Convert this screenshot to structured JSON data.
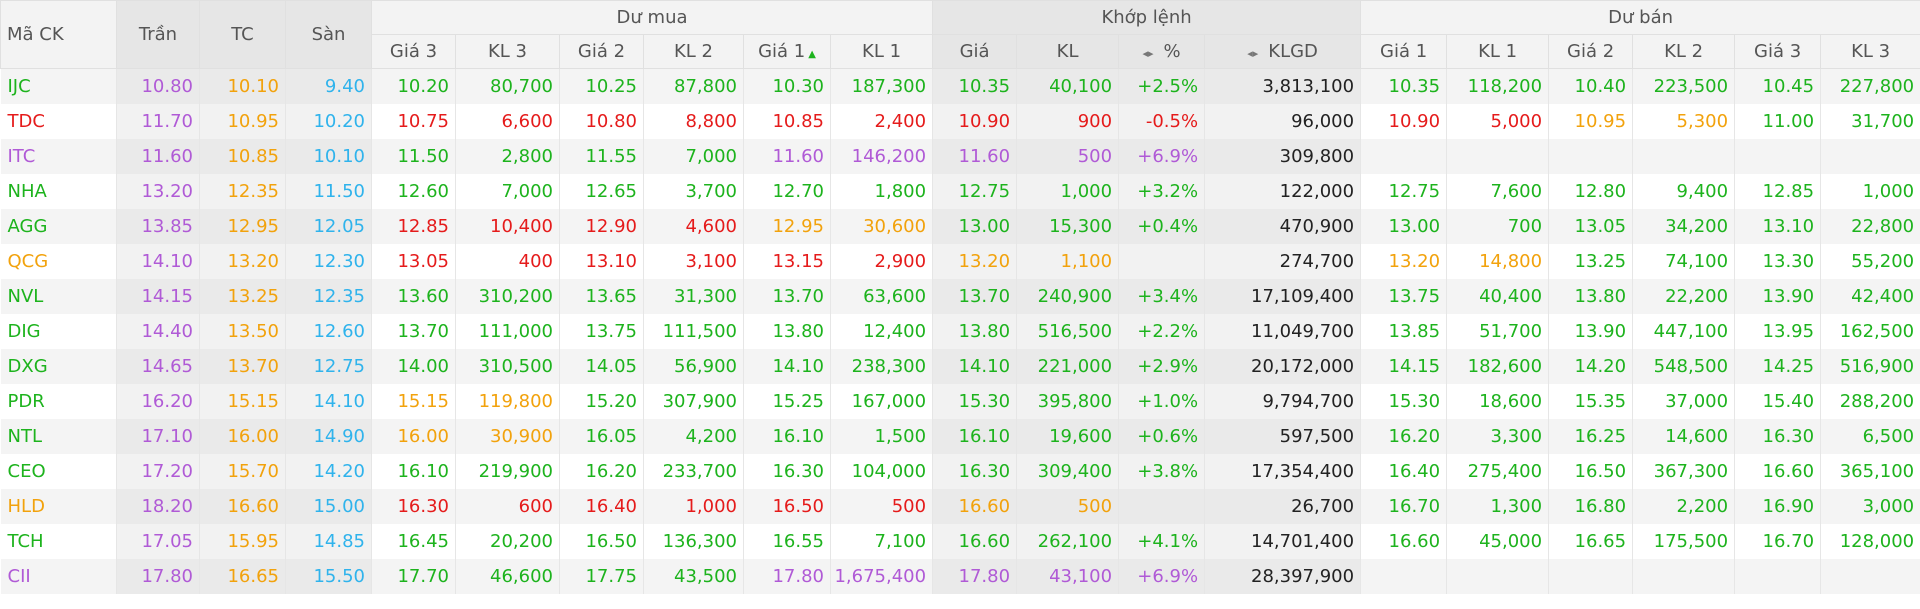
{
  "header": {
    "fixed": [
      "Mã CK",
      "Trần",
      "TC",
      "Sàn"
    ],
    "groups": [
      "Dư mua",
      "Khớp lệnh",
      "Dư bán"
    ],
    "columns": [
      "Giá 3",
      "KL 3",
      "Giá 2",
      "KL 2",
      "Giá 1",
      "KL 1",
      "Giá",
      "KL",
      "%",
      "KLGD",
      "Giá 1",
      "KL 1",
      "Giá 2",
      "KL 2",
      "Giá 3",
      "KL 3"
    ]
  },
  "rows": [
    [
      "IJC",
      "10.80",
      "10.10",
      "9.40",
      "10.20",
      "80,700",
      "10.25",
      "87,800",
      "10.30",
      "187,300",
      "10.35",
      "40,100",
      "+2.5%",
      "3,813,100",
      "10.35",
      "118,200",
      "10.40",
      "223,500",
      "10.45",
      "227,800"
    ],
    [
      "TDC",
      "11.70",
      "10.95",
      "10.20",
      "10.75",
      "6,600",
      "10.80",
      "8,800",
      "10.85",
      "2,400",
      "10.90",
      "900",
      "-0.5%",
      "96,000",
      "10.90",
      "5,000",
      "10.95",
      "5,300",
      "11.00",
      "31,700"
    ],
    [
      "ITC",
      "11.60",
      "10.85",
      "10.10",
      "11.50",
      "2,800",
      "11.55",
      "7,000",
      "11.60",
      "146,200",
      "11.60",
      "500",
      "+6.9%",
      "309,800",
      null,
      null,
      null,
      null,
      null,
      null
    ],
    [
      "NHA",
      "13.20",
      "12.35",
      "11.50",
      "12.60",
      "7,000",
      "12.65",
      "3,700",
      "12.70",
      "1,800",
      "12.75",
      "1,000",
      "+3.2%",
      "122,000",
      "12.75",
      "7,600",
      "12.80",
      "9,400",
      "12.85",
      "1,000"
    ],
    [
      "AGG",
      "13.85",
      "12.95",
      "12.05",
      "12.85",
      "10,400",
      "12.90",
      "4,600",
      "12.95",
      "30,600",
      "13.00",
      "15,300",
      "+0.4%",
      "470,900",
      "13.00",
      "700",
      "13.05",
      "34,200",
      "13.10",
      "22,800"
    ],
    [
      "QCG",
      "14.10",
      "13.20",
      "12.30",
      "13.05",
      "400",
      "13.10",
      "3,100",
      "13.15",
      "2,900",
      "13.20",
      "1,100",
      null,
      "274,700",
      "13.20",
      "14,800",
      "13.25",
      "74,100",
      "13.30",
      "55,200"
    ],
    [
      "NVL",
      "14.15",
      "13.25",
      "12.35",
      "13.60",
      "310,200",
      "13.65",
      "31,300",
      "13.70",
      "63,600",
      "13.70",
      "240,900",
      "+3.4%",
      "17,109,400",
      "13.75",
      "40,400",
      "13.80",
      "22,200",
      "13.90",
      "42,400"
    ],
    [
      "DIG",
      "14.40",
      "13.50",
      "12.60",
      "13.70",
      "111,000",
      "13.75",
      "111,500",
      "13.80",
      "12,400",
      "13.80",
      "516,500",
      "+2.2%",
      "11,049,700",
      "13.85",
      "51,700",
      "13.90",
      "447,100",
      "13.95",
      "162,500"
    ],
    [
      "DXG",
      "14.65",
      "13.70",
      "12.75",
      "14.00",
      "310,500",
      "14.05",
      "56,900",
      "14.10",
      "238,300",
      "14.10",
      "221,000",
      "+2.9%",
      "20,172,000",
      "14.15",
      "182,600",
      "14.20",
      "548,500",
      "14.25",
      "516,900"
    ],
    [
      "PDR",
      "16.20",
      "15.15",
      "14.10",
      "15.15",
      "119,800",
      "15.20",
      "307,900",
      "15.25",
      "167,000",
      "15.30",
      "395,800",
      "+1.0%",
      "9,794,700",
      "15.30",
      "18,600",
      "15.35",
      "37,000",
      "15.40",
      "288,200"
    ],
    [
      "NTL",
      "17.10",
      "16.00",
      "14.90",
      "16.00",
      "30,900",
      "16.05",
      "4,200",
      "16.10",
      "1,500",
      "16.10",
      "19,600",
      "+0.6%",
      "597,500",
      "16.20",
      "3,300",
      "16.25",
      "14,600",
      "16.30",
      "6,500"
    ],
    [
      "CEO",
      "17.20",
      "15.70",
      "14.20",
      "16.10",
      "219,900",
      "16.20",
      "233,700",
      "16.30",
      "104,000",
      "16.30",
      "309,400",
      "+3.8%",
      "17,354,400",
      "16.40",
      "275,400",
      "16.50",
      "367,300",
      "16.60",
      "365,100"
    ],
    [
      "HLD",
      "18.20",
      "16.60",
      "15.00",
      "16.30",
      "600",
      "16.40",
      "1,000",
      "16.50",
      "500",
      "16.60",
      "500",
      null,
      "26,700",
      "16.70",
      "1,300",
      "16.80",
      "2,200",
      "16.90",
      "3,000"
    ],
    [
      "TCH",
      "17.05",
      "15.95",
      "14.85",
      "16.45",
      "20,200",
      "16.50",
      "136,300",
      "16.55",
      "7,100",
      "16.60",
      "262,100",
      "+4.1%",
      "14,701,400",
      "16.60",
      "45,000",
      "16.65",
      "175,500",
      "16.70",
      "128,000"
    ],
    [
      "CII",
      "17.80",
      "16.65",
      "15.50",
      "17.70",
      "46,600",
      "17.75",
      "43,500",
      "17.80",
      "1,675,400",
      "17.80",
      "43,100",
      "+6.9%",
      "28,397,900",
      null,
      null,
      null,
      null,
      null,
      null
    ]
  ]
}
